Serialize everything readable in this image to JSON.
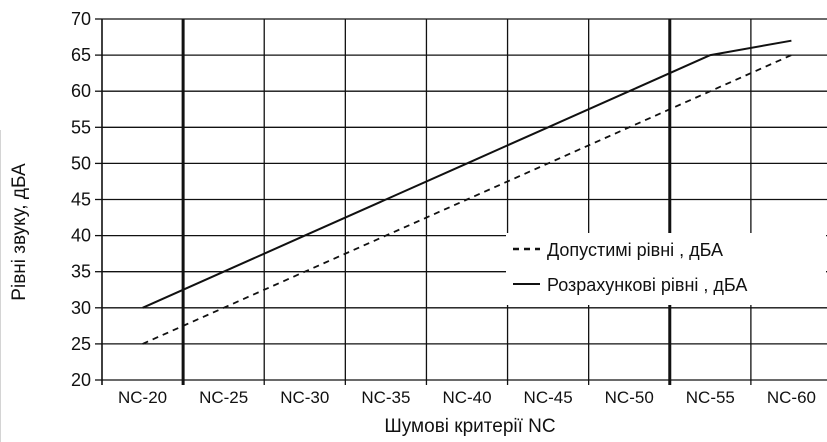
{
  "chart_data": {
    "type": "line",
    "categories": [
      "NC-20",
      "NC-25",
      "NC-30",
      "NC-35",
      "NC-40",
      "NC-45",
      "NC-50",
      "NC-55",
      "NC-60"
    ],
    "series": [
      {
        "name": "Допустимі рівні , дБА",
        "style": "dashed",
        "values": [
          25,
          30,
          35,
          40,
          45,
          50,
          55,
          60,
          65
        ]
      },
      {
        "name": "Розрахункові рівні , дБА",
        "style": "solid",
        "values": [
          30,
          35,
          40,
          45,
          50,
          55,
          60,
          65,
          67
        ]
      }
    ],
    "xlabel": "Шумові критерії NC",
    "ylabel": "Рівні звуку, дБА",
    "ylim": [
      20,
      70
    ],
    "yticks": [
      20,
      25,
      30,
      35,
      40,
      45,
      50,
      55,
      60,
      65,
      70
    ],
    "grid": true,
    "emphasized_vertical_gridlines": [
      "between NC-20 and NC-25",
      "between NC-50 and NC-55"
    ],
    "legend_position": "right",
    "colors": {
      "line": "#111111",
      "grid": "#111111",
      "background": "#ffffff"
    }
  }
}
